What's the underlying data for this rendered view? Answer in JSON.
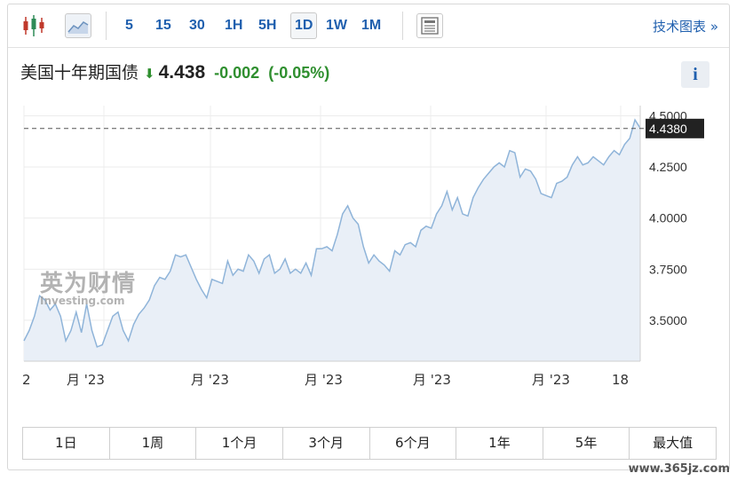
{
  "toolbar": {
    "icons": [
      "candlestick-icon",
      "area-chart-icon",
      "document-icon"
    ],
    "timeframes": [
      "5",
      "15",
      "30",
      "1H",
      "5H",
      "1D",
      "1W",
      "1M"
    ],
    "active_timeframe": "1D",
    "tech_chart_label": "技术图表",
    "tech_chart_arrow": "»"
  },
  "quote": {
    "name": "美国十年期国债",
    "price": "4.438",
    "change": "-0.002",
    "change_pct": "(-0.05%)",
    "direction_icon": "down-arrow-icon",
    "info_label": "i"
  },
  "chart_data": {
    "type": "area",
    "title": "",
    "xlabel": "",
    "ylabel": "",
    "ylim": [
      3.3,
      4.55
    ],
    "yticks": [
      "4.5000",
      "4.2500",
      "4.0000",
      "3.7500",
      "3.5000"
    ],
    "xtick_labels": [
      "2",
      "月 '23",
      "月 '23",
      "月 '23",
      "月 '23",
      "月 '23",
      "18"
    ],
    "current_value_label": "4.4380",
    "current_value": 4.438,
    "values": [
      3.4,
      3.45,
      3.52,
      3.62,
      3.6,
      3.55,
      3.58,
      3.52,
      3.4,
      3.45,
      3.54,
      3.44,
      3.58,
      3.45,
      3.37,
      3.38,
      3.45,
      3.52,
      3.54,
      3.45,
      3.4,
      3.48,
      3.53,
      3.56,
      3.6,
      3.67,
      3.71,
      3.7,
      3.74,
      3.82,
      3.81,
      3.82,
      3.76,
      3.7,
      3.65,
      3.61,
      3.7,
      3.69,
      3.68,
      3.79,
      3.72,
      3.75,
      3.74,
      3.82,
      3.79,
      3.73,
      3.8,
      3.82,
      3.73,
      3.75,
      3.8,
      3.73,
      3.75,
      3.73,
      3.78,
      3.72,
      3.85,
      3.85,
      3.86,
      3.84,
      3.92,
      4.02,
      4.06,
      4.0,
      3.97,
      3.86,
      3.78,
      3.82,
      3.79,
      3.77,
      3.74,
      3.84,
      3.82,
      3.87,
      3.88,
      3.86,
      3.94,
      3.96,
      3.95,
      4.02,
      4.06,
      4.13,
      4.04,
      4.1,
      4.02,
      4.01,
      4.1,
      4.15,
      4.19,
      4.22,
      4.25,
      4.27,
      4.25,
      4.33,
      4.32,
      4.2,
      4.24,
      4.23,
      4.19,
      4.12,
      4.11,
      4.1,
      4.17,
      4.18,
      4.2,
      4.26,
      4.3,
      4.26,
      4.27,
      4.3,
      4.28,
      4.26,
      4.3,
      4.33,
      4.31,
      4.36,
      4.39,
      4.48,
      4.44
    ],
    "grid": true,
    "legend": "none",
    "line_color": "#8fb4d9",
    "fill_color": "#e9eff7"
  },
  "ranges": [
    "1日",
    "1周",
    "1个月",
    "3个月",
    "6个月",
    "1年",
    "5年",
    "最大值"
  ],
  "watermark": {
    "cn": "英为财情",
    "en": "Investing.com"
  },
  "site_mark": "www.365jz.com"
}
